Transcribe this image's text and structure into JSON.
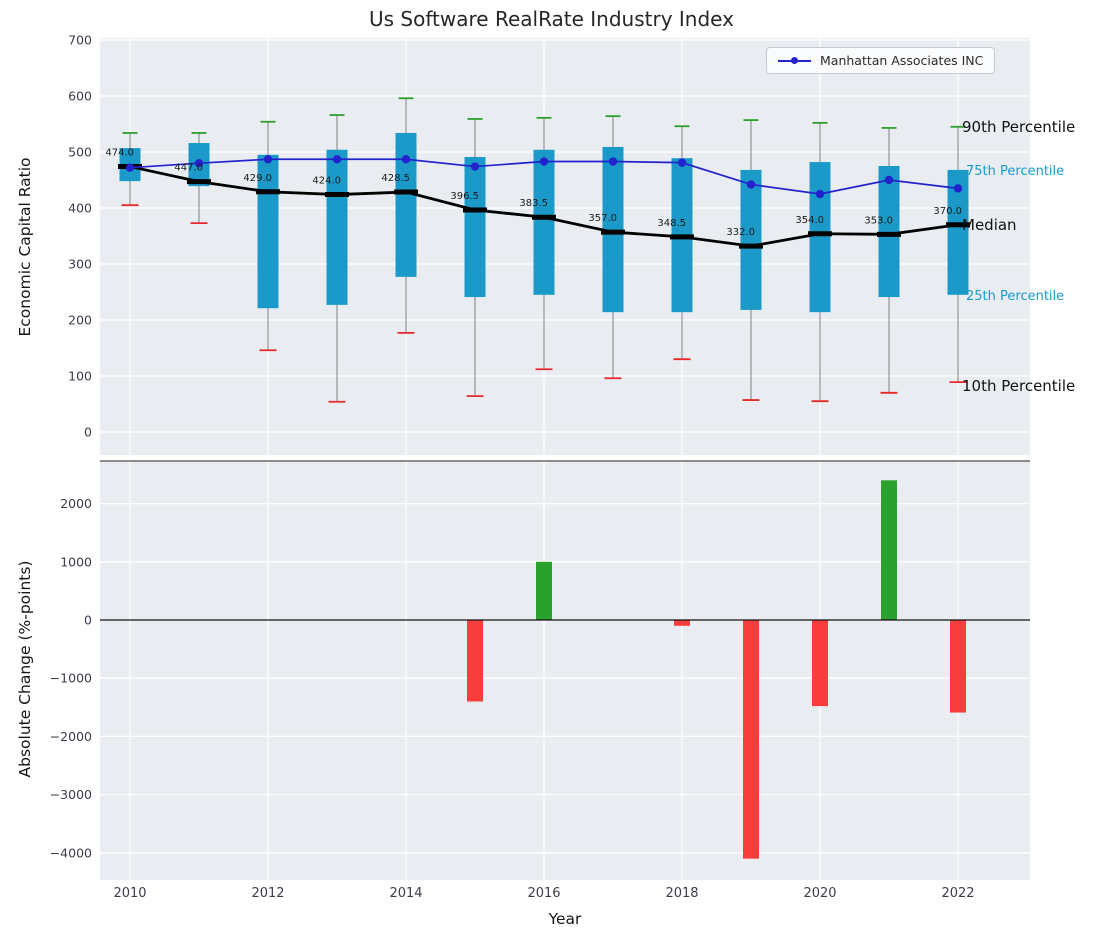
{
  "colors": {
    "plot_bg": "#e9edf1",
    "grid": "#ffffff",
    "box": "#1b9ac9",
    "green": "#2ca02c",
    "red": "#f93d3d",
    "cap_red": "#e42a2a",
    "manhattan": "#2323cd",
    "median": "#000000",
    "whisker": "#9a9a9a",
    "tick": "#3c3c4c",
    "teal_label": "#1b9ac9",
    "black_label": "#111111"
  },
  "chart_data": [
    {
      "name": "economic-capital-ratio-boxplot",
      "type": "boxplot",
      "title": "Us Software RealRate Industry Index",
      "ylabel": "Economic Capital Ratio",
      "ylim": [
        0,
        700
      ],
      "yticks": [
        0,
        100,
        200,
        300,
        400,
        500,
        600,
        700
      ],
      "xticks": [
        2010,
        2012,
        2014,
        2016,
        2018,
        2020,
        2022
      ],
      "years": [
        2010,
        2011,
        2012,
        2013,
        2014,
        2015,
        2016,
        2017,
        2018,
        2019,
        2020,
        2021,
        2022
      ],
      "series": {
        "p90": [
          534,
          534,
          554,
          566,
          596,
          559,
          561,
          564,
          546,
          557,
          552,
          543,
          545
        ],
        "p75": [
          507,
          516,
          495,
          504,
          534,
          491,
          504,
          509,
          489,
          468,
          482,
          475,
          468
        ],
        "median": [
          474,
          447,
          429,
          424,
          428.5,
          396.5,
          383.5,
          357,
          348.5,
          332,
          354,
          353,
          370
        ],
        "p25": [
          448,
          439,
          221,
          227,
          277,
          241,
          245,
          214,
          214,
          218,
          214,
          241,
          245
        ],
        "p10": [
          405,
          373,
          146,
          54,
          177,
          64,
          112,
          96,
          130,
          57,
          55,
          70,
          89
        ],
        "manhattan": [
          472,
          480,
          487,
          487,
          487,
          474,
          483,
          483,
          481,
          442,
          425,
          450,
          435
        ]
      },
      "median_labels": [
        "474.0",
        "447.0",
        "429.0",
        "424.0",
        "428.5",
        "396.5",
        "383.5",
        "357.0",
        "348.5",
        "332.0",
        "354.0",
        "353.0",
        "370.0"
      ],
      "annotations": [
        {
          "label": "90th Percentile",
          "series": "p90",
          "style": "black"
        },
        {
          "label": "75th Percentile",
          "series": "p75",
          "style": "teal"
        },
        {
          "label": "Median",
          "series": "median",
          "style": "black"
        },
        {
          "label": "25th Percentile",
          "series": "p25",
          "style": "teal"
        },
        {
          "label": "10th Percentile",
          "series": "p10",
          "style": "black"
        }
      ],
      "legend": [
        {
          "label": "Manhattan Associates INC"
        }
      ]
    },
    {
      "name": "absolute-change-bars",
      "type": "bar",
      "ylabel": "Absolute Change (%-points)",
      "xlabel": "Year",
      "ylim": [
        -4400,
        2700
      ],
      "yticks": [
        -4000,
        -3000,
        -2000,
        -1000,
        0,
        1000,
        2000
      ],
      "xticks": [
        2010,
        2012,
        2014,
        2016,
        2018,
        2020,
        2022
      ],
      "categories": [
        2010,
        2011,
        2012,
        2013,
        2014,
        2015,
        2016,
        2017,
        2018,
        2019,
        2020,
        2021,
        2022
      ],
      "values": [
        0,
        0,
        0,
        0,
        0,
        -1400,
        1000,
        0,
        -100,
        -4100,
        -1480,
        2400,
        -1590
      ]
    }
  ]
}
